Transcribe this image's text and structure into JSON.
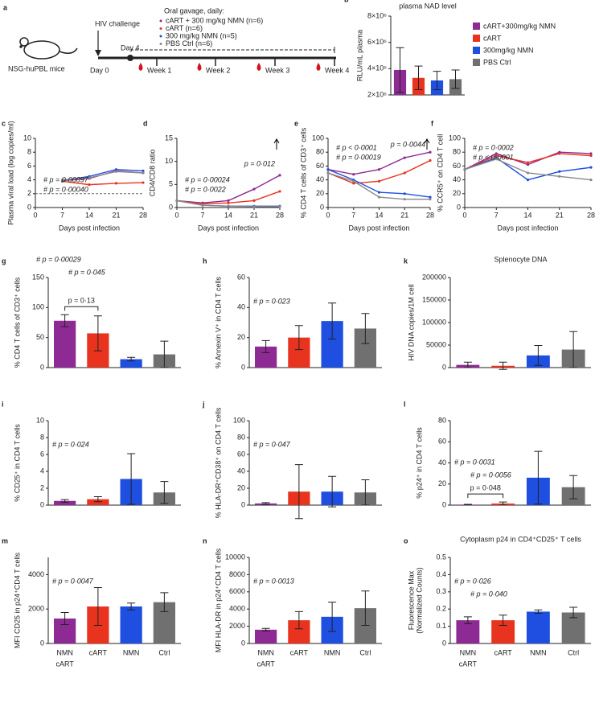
{
  "diagram": {
    "panel": "a",
    "challenge": "HIV challenge",
    "gavage": "Oral gavage, daily:",
    "groups": [
      {
        "text": "cART + 300 mg/kg NMN (n=6)",
        "color": "#8e2a93"
      },
      {
        "text": "cART (n=6)",
        "color": "#e8331f"
      },
      {
        "text": "300 mg/kg NMN (n=5)",
        "color": "#1f4fe0"
      },
      {
        "text": "PBS Ctrl (n=6)",
        "color": "#8a8a8a"
      }
    ],
    "day4": "Day 4",
    "day0": "Day 0",
    "weeks": [
      "Week 1",
      "Week 2",
      "Week 3",
      "Week 4"
    ],
    "mice": "NSG-huPBL mice"
  },
  "chart_data": [
    {
      "type": "bar",
      "panel": "b",
      "title": "plasma NAD level",
      "ylabel": "RLU/mL plasma",
      "ylim": [
        2000000,
        8000000
      ],
      "yticks": [
        {
          "value": 2000000,
          "label": "2×10⁶"
        },
        {
          "value": 4000000,
          "label": "4×10⁶"
        },
        {
          "value": 6000000,
          "label": "6×10⁶"
        },
        {
          "value": 8000000,
          "label": "8×10⁶"
        }
      ],
      "values": [
        3900000,
        3300000,
        3100000,
        3200000
      ],
      "errors": [
        1700000,
        900000,
        700000,
        700000
      ],
      "colors": [
        "#8e2a93",
        "#e8331f",
        "#1f4fe0",
        "#707070"
      ],
      "legend": [
        "cART+300mg/kg NMN",
        "cART",
        "300mg/kg NMN",
        "PBS Ctrl"
      ]
    },
    {
      "type": "line",
      "panel": "c",
      "ylabel": "Plasma viral load (log copies/ml)",
      "xlabel": "Days post infection",
      "x": [
        0,
        7,
        14,
        21,
        28
      ],
      "xlim": [
        0,
        28
      ],
      "xticks": [
        0,
        7,
        14,
        21,
        28
      ],
      "ylim": [
        0,
        10
      ],
      "yticks": [
        0,
        2,
        4,
        6,
        8,
        10
      ],
      "hline": 2,
      "series": [
        {
          "color": "#8e2a93",
          "values": [
            null,
            3.9,
            4.2,
            5.3,
            5.0
          ]
        },
        {
          "color": "#e8331f",
          "values": [
            null,
            3.8,
            3.3,
            3.5,
            3.6
          ]
        },
        {
          "color": "#1f4fe0",
          "values": [
            null,
            3.9,
            4.5,
            5.5,
            5.3
          ]
        },
        {
          "color": "#8a8a8a",
          "values": [
            null,
            4.0,
            4.3,
            5.2,
            5.0
          ]
        }
      ],
      "annotations": [
        {
          "text": "# p = 0·00097",
          "color": "#8e2a93"
        },
        {
          "text": "# p = 0·00040",
          "color": "#e8331f"
        }
      ]
    },
    {
      "type": "line",
      "panel": "d",
      "ylabel": "CD4/CD8 ratio",
      "xlabel": "Days post infection",
      "x": [
        0,
        7,
        14,
        21,
        28
      ],
      "xlim": [
        0,
        28
      ],
      "xticks": [
        0,
        7,
        14,
        21,
        28
      ],
      "ylim": [
        0,
        15
      ],
      "yticks": [
        0,
        5,
        10,
        15
      ],
      "series": [
        {
          "color": "#8e2a93",
          "values": [
            1.5,
            1.0,
            1.5,
            4.0,
            7.0
          ]
        },
        {
          "color": "#e8331f",
          "values": [
            1.5,
            0.8,
            1.0,
            1.5,
            3.5
          ]
        },
        {
          "color": "#1f4fe0",
          "values": [
            1.5,
            0.5,
            0.3,
            0.3,
            0.3
          ]
        },
        {
          "color": "#8a8a8a",
          "values": [
            1.5,
            0.5,
            0.3,
            0.2,
            0.2
          ]
        }
      ],
      "annotations": [
        {
          "text": "p = 0·012",
          "color": "#000000"
        },
        {
          "text": "# p = 0·00024",
          "color": "#8e2a93"
        },
        {
          "text": "# p = 0·0022",
          "color": "#e8331f"
        }
      ]
    },
    {
      "type": "line",
      "panel": "e",
      "ylabel": "% CD4 T cells of CD3⁺ cells",
      "xlabel": "Days post infection",
      "x": [
        0,
        7,
        14,
        21,
        28
      ],
      "xlim": [
        0,
        28
      ],
      "xticks": [
        0,
        7,
        14,
        21,
        28
      ],
      "ylim": [
        0,
        100
      ],
      "yticks": [
        0,
        20,
        40,
        60,
        80,
        100
      ],
      "series": [
        {
          "color": "#8e2a93",
          "values": [
            55,
            48,
            55,
            72,
            80
          ]
        },
        {
          "color": "#e8331f",
          "values": [
            50,
            35,
            38,
            50,
            68
          ]
        },
        {
          "color": "#1f4fe0",
          "values": [
            55,
            40,
            22,
            20,
            15
          ]
        },
        {
          "color": "#8a8a8a",
          "values": [
            50,
            38,
            15,
            12,
            12
          ]
        }
      ],
      "annotations": [
        {
          "text": "p = 0·0044",
          "color": "#000000"
        },
        {
          "text": "# p < 0·0001",
          "color": "#8e2a93"
        },
        {
          "text": "# p = 0·00019",
          "color": "#e8331f"
        }
      ]
    },
    {
      "type": "line",
      "panel": "f",
      "ylabel": "% CCR5⁺ on CD4 T cell",
      "xlabel": "Days post infection",
      "x": [
        0,
        7,
        14,
        21,
        28
      ],
      "xlim": [
        0,
        28
      ],
      "xticks": [
        0,
        7,
        14,
        21,
        28
      ],
      "ylim": [
        0,
        100
      ],
      "yticks": [
        0,
        20,
        40,
        60,
        80,
        100
      ],
      "series": [
        {
          "color": "#8e2a93",
          "values": [
            55,
            78,
            62,
            80,
            78
          ]
        },
        {
          "color": "#e8331f",
          "values": [
            55,
            75,
            65,
            78,
            75
          ]
        },
        {
          "color": "#1f4fe0",
          "values": [
            55,
            72,
            40,
            52,
            58
          ]
        },
        {
          "color": "#8a8a8a",
          "values": [
            55,
            70,
            50,
            45,
            40
          ]
        }
      ],
      "annotations": [
        {
          "text": "# p = 0·0002",
          "color": "#8e2a93"
        },
        {
          "text": "# p < 0·0001",
          "color": "#e8331f"
        }
      ]
    },
    {
      "type": "bar",
      "panel": "g",
      "ylabel": "% CD4 T cells of CD3⁺ cells",
      "ylim": [
        0,
        150
      ],
      "yticks": [
        0,
        50,
        100,
        150
      ],
      "values": [
        78,
        57,
        14,
        22
      ],
      "errors": [
        10,
        29,
        3,
        22
      ],
      "colors": [
        "#8e2a93",
        "#e8331f",
        "#1f4fe0",
        "#707070"
      ],
      "annotations": [
        {
          "text": "# p = 0·00029",
          "color": "#8e2a93"
        },
        {
          "text": "# p = 0·045",
          "color": "#e8331f"
        },
        {
          "text": "p = 0·13",
          "color": "#000000",
          "bracket": [
            0,
            1
          ]
        }
      ]
    },
    {
      "type": "bar",
      "panel": "h",
      "ylabel": "% Annexin V⁺ in CD4 T cells",
      "ylim": [
        0,
        60
      ],
      "yticks": [
        0,
        20,
        40,
        60
      ],
      "values": [
        14,
        20,
        31,
        26
      ],
      "errors": [
        4,
        8,
        12,
        10
      ],
      "colors": [
        "#8e2a93",
        "#e8331f",
        "#1f4fe0",
        "#707070"
      ],
      "annotations": [
        {
          "text": "# p = 0·023",
          "color": "#8e2a93"
        }
      ]
    },
    {
      "type": "bar",
      "panel": "k",
      "title": "Splenocyte DNA",
      "ylabel": "HIV DNA copies/1M cell",
      "ylim": [
        0,
        200000
      ],
      "yticks": [
        0,
        50000,
        100000,
        150000,
        200000
      ],
      "values": [
        6000,
        4000,
        27000,
        40000
      ],
      "errors": [
        6000,
        8000,
        22000,
        40000
      ],
      "colors": [
        "#8e2a93",
        "#e8331f",
        "#1f4fe0",
        "#707070"
      ]
    },
    {
      "type": "bar",
      "panel": "i",
      "ylabel": "% CD25⁺ in CD4 T cells",
      "ylim": [
        0,
        10
      ],
      "yticks": [
        0,
        2,
        4,
        6,
        8,
        10
      ],
      "values": [
        0.5,
        0.7,
        3.1,
        1.5
      ],
      "errors": [
        0.15,
        0.3,
        3.0,
        1.3
      ],
      "colors": [
        "#8e2a93",
        "#e8331f",
        "#1f4fe0",
        "#707070"
      ],
      "annotations": [
        {
          "text": "# p = 0·024",
          "color": "#8e2a93"
        }
      ]
    },
    {
      "type": "bar",
      "panel": "j",
      "ylabel": "% HLA-DR⁺CD38⁺ on CD4 T cells",
      "ylim": [
        0,
        100
      ],
      "yticks": [
        0,
        20,
        40,
        60,
        80,
        100
      ],
      "values": [
        2,
        16,
        16,
        15
      ],
      "errors": [
        1,
        32,
        18,
        15
      ],
      "colors": [
        "#8e2a93",
        "#e8331f",
        "#1f4fe0",
        "#707070"
      ],
      "annotations": [
        {
          "text": "# p = 0·047",
          "color": "#8e2a93"
        }
      ]
    },
    {
      "type": "bar",
      "panel": "l",
      "ylabel": "% p24⁺ in CD4 T cells",
      "ylim": [
        0,
        80
      ],
      "yticks": [
        0,
        20,
        40,
        60,
        80
      ],
      "values": [
        0.5,
        1.5,
        26,
        17
      ],
      "errors": [
        0.3,
        1.5,
        25,
        11
      ],
      "colors": [
        "#8e2a93",
        "#e8331f",
        "#1f4fe0",
        "#707070"
      ],
      "annotations": [
        {
          "text": "p = 0·048",
          "color": "#000000",
          "bracket": [
            0,
            1
          ]
        },
        {
          "text": "# p = 0·0031",
          "color": "#8e2a93"
        },
        {
          "text": "# p = 0·0056",
          "color": "#e8331f"
        }
      ]
    },
    {
      "type": "bar",
      "panel": "m",
      "ylabel": "MFI CD25 in p24⁺CD4 T cells",
      "ylim": [
        0,
        5000
      ],
      "yticks": [
        0,
        2000,
        4000
      ],
      "values": [
        1450,
        2150,
        2150,
        2400
      ],
      "errors": [
        350,
        1100,
        200,
        550
      ],
      "colors": [
        "#8e2a93",
        "#e8331f",
        "#1f4fe0",
        "#707070"
      ],
      "categories": [
        [
          "NMN",
          "cART"
        ],
        [
          "cART"
        ],
        [
          "NMN"
        ],
        [
          "Ctrl"
        ]
      ],
      "annotations": [
        {
          "text": "# p = 0·0047",
          "color": "#8e2a93"
        }
      ]
    },
    {
      "type": "bar",
      "panel": "n",
      "ylabel": "MFI HLA-DR in p24⁺CD4 T cells",
      "ylim": [
        0,
        10000
      ],
      "yticks": [
        0,
        2000,
        4000,
        6000,
        8000,
        10000
      ],
      "values": [
        1600,
        2700,
        3100,
        4100
      ],
      "errors": [
        150,
        1000,
        1700,
        2000
      ],
      "colors": [
        "#8e2a93",
        "#e8331f",
        "#1f4fe0",
        "#707070"
      ],
      "categories": [
        [
          "NMN",
          "cART"
        ],
        [
          "cART"
        ],
        [
          "NMN"
        ],
        [
          "Ctrl"
        ]
      ],
      "annotations": [
        {
          "text": "# p = 0·0013",
          "color": "#8e2a93"
        }
      ]
    },
    {
      "type": "bar",
      "panel": "o",
      "title": "Cytoplasm p24 in CD4⁺CD25⁺ T cells",
      "ylabel": [
        "Fluorescence Max",
        "(Normalized Counts)"
      ],
      "ylim": [
        0,
        0.5
      ],
      "yticks": [
        0,
        0.1,
        0.2,
        0.3,
        0.4,
        0.5
      ],
      "values": [
        0.135,
        0.135,
        0.185,
        0.18
      ],
      "errors": [
        0.02,
        0.03,
        0.01,
        0.03
      ],
      "colors": [
        "#8e2a93",
        "#e8331f",
        "#1f4fe0",
        "#707070"
      ],
      "categories": [
        [
          "NMN",
          "cART"
        ],
        [
          "cART"
        ],
        [
          "NMN"
        ],
        [
          "Ctrl"
        ]
      ],
      "annotations": [
        {
          "text": "# p = 0·026",
          "color": "#8e2a93"
        },
        {
          "text": "# p = 0·040",
          "color": "#e8331f"
        }
      ]
    }
  ]
}
